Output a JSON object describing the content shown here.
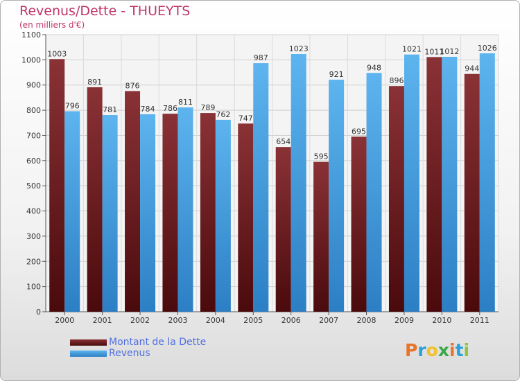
{
  "page": {
    "title": "Revenus/Dette - THUEYTS",
    "subtitle": "(en milliers d'€)"
  },
  "logo": {
    "text": "Proxiti",
    "colors": [
      "#e8742a",
      "#2aa1d8",
      "#f2c12e",
      "#3aa84a",
      "#e8742a",
      "#2aa1d8",
      "#8cc63e"
    ]
  },
  "colors": {
    "dette": "#7a2a2e",
    "revenus": "#4fa8e6",
    "title": "#c0346a",
    "legend_text": "#4f6ee0"
  },
  "chart_data": {
    "type": "bar",
    "title": "Revenus/Dette - THUEYTS",
    "subtitle": "(en milliers d'€)",
    "categories": [
      "2000",
      "2001",
      "2002",
      "2003",
      "2004",
      "2005",
      "2006",
      "2007",
      "2008",
      "2009",
      "2010",
      "2011"
    ],
    "series": [
      {
        "name": "Montant de la Dette",
        "values": [
          1003,
          891,
          876,
          786,
          789,
          747,
          654,
          595,
          695,
          896,
          1011,
          944
        ]
      },
      {
        "name": "Revenus",
        "values": [
          796,
          781,
          784,
          811,
          762,
          987,
          1023,
          921,
          948,
          1021,
          1012,
          1026
        ]
      }
    ],
    "ylim": [
      0,
      1100
    ],
    "yticks": [
      0,
      100,
      200,
      300,
      400,
      500,
      600,
      700,
      800,
      900,
      1000,
      1100
    ],
    "grid": true,
    "legend_position": "bottom-left"
  }
}
